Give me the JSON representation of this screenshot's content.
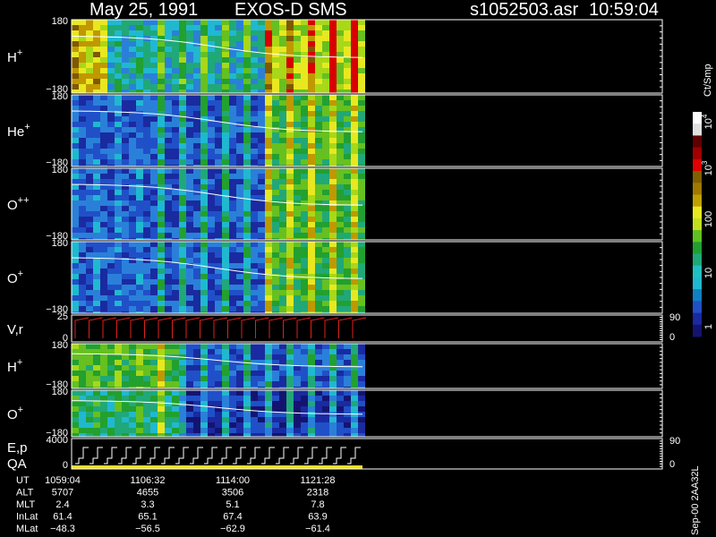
{
  "header": {
    "date": "May 25, 1991",
    "instrument": "EXOS-D SMS",
    "file": "s1052503.asr",
    "time": "10:59:04"
  },
  "panels": [
    {
      "label": "H",
      "sup": "+",
      "top": "180",
      "bottom": "−180"
    },
    {
      "label": "He",
      "sup": "+",
      "top": "180",
      "bottom": "−180"
    },
    {
      "label": "O",
      "sup": "++",
      "top": "180",
      "bottom": "−180"
    },
    {
      "label": "O",
      "sup": "+",
      "top": "180",
      "bottom": "−180"
    },
    {
      "label": "V,r",
      "top": "25",
      "bottom": "0",
      "right_top": "90",
      "right_bottom": "0"
    },
    {
      "label": "H",
      "sup": "+",
      "top": "180",
      "bottom": "−180"
    },
    {
      "label": "O",
      "sup": "+",
      "top": "180",
      "bottom": "−180"
    },
    {
      "label": "E,p",
      "label2": "QA",
      "top": "4000",
      "bottom": "0",
      "right_top": "90",
      "right_bottom": "0"
    }
  ],
  "colorbar": {
    "unit": "Ct/Smp",
    "labels": [
      {
        "base": "10",
        "exp": "4"
      },
      {
        "base": "10",
        "exp": "3"
      },
      {
        "base": "100"
      },
      {
        "base": "10"
      },
      {
        "base": "1"
      }
    ]
  },
  "table": {
    "rows": [
      {
        "name": "UT",
        "cells": [
          "1059:04",
          "1106:32",
          "1114:00",
          "1121:28"
        ]
      },
      {
        "name": "ALT",
        "cells": [
          "5707",
          "4655",
          "3506",
          "2318"
        ]
      },
      {
        "name": "MLT",
        "cells": [
          "2.4",
          "3.3",
          "5.1",
          "7.8"
        ]
      },
      {
        "name": "InLat",
        "cells": [
          "61.4",
          "65.1",
          "67.4",
          "63.9"
        ]
      },
      {
        "name": "MLat",
        "cells": [
          "−48.3",
          "−56.5",
          "−62.9",
          "−61.4"
        ]
      }
    ]
  },
  "footer": "Sep-00 2AA32L"
}
